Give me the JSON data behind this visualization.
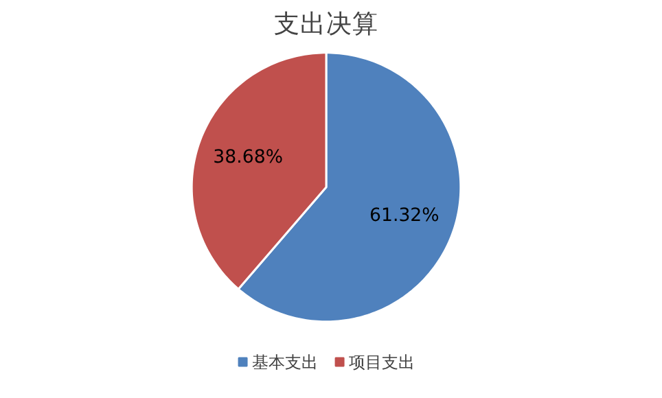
{
  "chart_data": {
    "type": "pie",
    "title": "支出决算",
    "categories": [
      "基本支出",
      "项目支出"
    ],
    "values": [
      61.32,
      38.68
    ],
    "colors": [
      "#4f81bd",
      "#c0504d"
    ],
    "value_labels": [
      "61.32%",
      "38.68%"
    ],
    "legend": "bottom"
  }
}
